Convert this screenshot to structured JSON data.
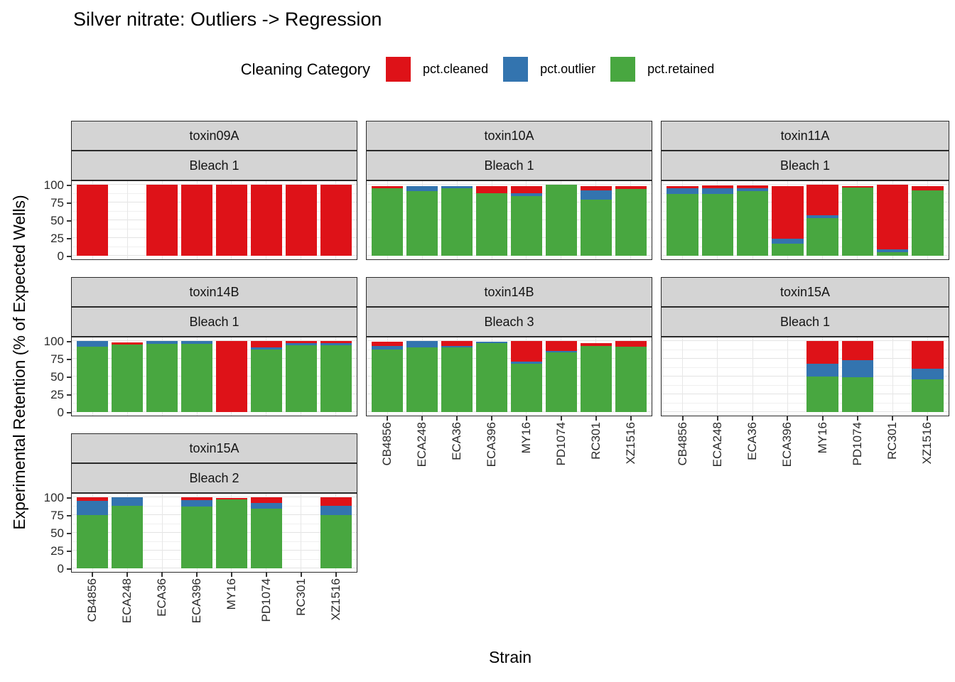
{
  "title": "Silver nitrate: Outliers -> Regression",
  "legend": {
    "title": "Cleaning Category",
    "items": [
      {
        "label": "pct.cleaned",
        "color": "#DE1218"
      },
      {
        "label": "pct.outlier",
        "color": "#3374AF"
      },
      {
        "label": "pct.retained",
        "color": "#48A740"
      }
    ]
  },
  "axes": {
    "x_title": "Strain",
    "y_title": "Experimental Retention (% of Expected Wells)"
  },
  "chart_data": {
    "type": "bar",
    "stacked": true,
    "stack_order": [
      "pct.retained",
      "pct.outlier",
      "pct.cleaned"
    ],
    "colors": {
      "pct.cleaned": "#DE1218",
      "pct.outlier": "#3374AF",
      "pct.retained": "#48A740"
    },
    "categories": [
      "CB4856",
      "ECA248",
      "ECA36",
      "ECA396",
      "MY16",
      "PD1074",
      "RC301",
      "XZ1516"
    ],
    "ylim": [
      0,
      100
    ],
    "y_ticks": [
      100,
      75,
      50,
      25,
      0
    ],
    "grid": "major+minor",
    "legend_position": "top",
    "facets": [
      {
        "toxin": "toxin09A",
        "bleach": "Bleach 1",
        "row": 0,
        "col": 0,
        "bars": [
          {
            "pct.cleaned": 100
          },
          null,
          {
            "pct.cleaned": 100
          },
          {
            "pct.cleaned": 100
          },
          {
            "pct.cleaned": 100
          },
          {
            "pct.cleaned": 100
          },
          {
            "pct.cleaned": 100
          },
          {
            "pct.cleaned": 100
          }
        ]
      },
      {
        "toxin": "toxin10A",
        "bleach": "Bleach 1",
        "row": 0,
        "col": 1,
        "bars": [
          {
            "pct.retained": 95,
            "pct.cleaned": 3
          },
          {
            "pct.retained": 91,
            "pct.outlier": 7
          },
          {
            "pct.retained": 95,
            "pct.outlier": 3
          },
          {
            "pct.retained": 88,
            "pct.cleaned": 10
          },
          {
            "pct.retained": 84,
            "pct.outlier": 4,
            "pct.cleaned": 10
          },
          {
            "pct.retained": 100
          },
          {
            "pct.retained": 79,
            "pct.outlier": 13,
            "pct.cleaned": 6
          },
          {
            "pct.retained": 94,
            "pct.cleaned": 4
          }
        ]
      },
      {
        "toxin": "toxin11A",
        "bleach": "Bleach 1",
        "row": 0,
        "col": 2,
        "bars": [
          {
            "pct.retained": 87,
            "pct.outlier": 8,
            "pct.cleaned": 3
          },
          {
            "pct.retained": 87,
            "pct.outlier": 8,
            "pct.cleaned": 4
          },
          {
            "pct.retained": 91,
            "pct.outlier": 4,
            "pct.cleaned": 4
          },
          {
            "pct.retained": 17,
            "pct.outlier": 7,
            "pct.cleaned": 74
          },
          {
            "pct.retained": 53,
            "pct.outlier": 4,
            "pct.cleaned": 43
          },
          {
            "pct.retained": 96,
            "pct.cleaned": 2
          },
          {
            "pct.retained": 5,
            "pct.outlier": 4,
            "pct.cleaned": 91
          },
          {
            "pct.retained": 92,
            "pct.cleaned": 6
          }
        ]
      },
      {
        "toxin": "toxin14B",
        "bleach": "Bleach 1",
        "row": 1,
        "col": 0,
        "bars": [
          {
            "pct.retained": 92,
            "pct.outlier": 8
          },
          {
            "pct.retained": 95,
            "pct.cleaned": 3
          },
          {
            "pct.retained": 96,
            "pct.outlier": 4
          },
          {
            "pct.retained": 96,
            "pct.outlier": 4
          },
          {
            "pct.cleaned": 100
          },
          {
            "pct.retained": 88,
            "pct.outlier": 3,
            "pct.cleaned": 9
          },
          {
            "pct.retained": 94,
            "pct.outlier": 3,
            "pct.cleaned": 3
          },
          {
            "pct.retained": 94,
            "pct.outlier": 3,
            "pct.cleaned": 3
          }
        ]
      },
      {
        "toxin": "toxin14B",
        "bleach": "Bleach 3",
        "row": 1,
        "col": 1,
        "bars": [
          {
            "pct.retained": 88,
            "pct.outlier": 5,
            "pct.cleaned": 6
          },
          {
            "pct.retained": 91,
            "pct.outlier": 9
          },
          {
            "pct.retained": 91,
            "pct.outlier": 2,
            "pct.cleaned": 7
          },
          {
            "pct.retained": 97,
            "pct.outlier": 2
          },
          {
            "pct.retained": 68,
            "pct.outlier": 3,
            "pct.cleaned": 29
          },
          {
            "pct.retained": 84,
            "pct.outlier": 2,
            "pct.cleaned": 14
          },
          {
            "pct.retained": 93,
            "pct.cleaned": 4
          },
          {
            "pct.retained": 92,
            "pct.cleaned": 8
          }
        ]
      },
      {
        "toxin": "toxin15A",
        "bleach": "Bleach 1",
        "row": 1,
        "col": 2,
        "bars": [
          null,
          null,
          null,
          null,
          {
            "pct.retained": 50,
            "pct.outlier": 18,
            "pct.cleaned": 32
          },
          {
            "pct.retained": 49,
            "pct.outlier": 24,
            "pct.cleaned": 27
          },
          null,
          {
            "pct.retained": 46,
            "pct.outlier": 15,
            "pct.cleaned": 39
          }
        ]
      },
      {
        "toxin": "toxin15A",
        "bleach": "Bleach 2",
        "row": 2,
        "col": 0,
        "bars": [
          {
            "pct.retained": 75,
            "pct.outlier": 20,
            "pct.cleaned": 5
          },
          {
            "pct.retained": 88,
            "pct.outlier": 12
          },
          null,
          {
            "pct.retained": 87,
            "pct.outlier": 9,
            "pct.cleaned": 4
          },
          {
            "pct.retained": 97,
            "pct.cleaned": 2
          },
          {
            "pct.retained": 84,
            "pct.outlier": 8,
            "pct.cleaned": 8
          },
          null,
          {
            "pct.retained": 75,
            "pct.outlier": 13,
            "pct.cleaned": 12
          }
        ]
      }
    ]
  }
}
